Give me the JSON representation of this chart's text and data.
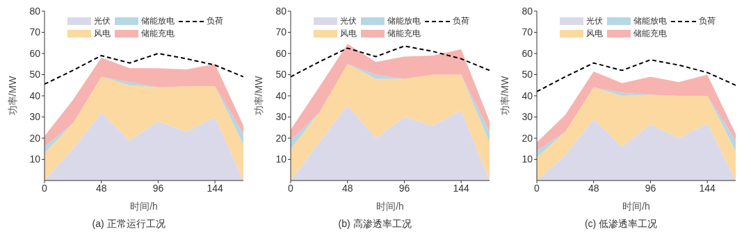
{
  "chart_data": [
    {
      "type": "area",
      "stacked": true,
      "title": "(a) 正常运行工况",
      "xlabel": "时间/h",
      "ylabel": "功率/MW",
      "x": [
        0,
        24,
        48,
        72,
        96,
        120,
        144,
        168
      ],
      "xlim": [
        0,
        168
      ],
      "xticks": [
        0,
        48,
        96,
        144
      ],
      "ylim": [
        0,
        80
      ],
      "yticks": [
        10,
        20,
        30,
        40,
        50,
        60,
        70,
        80
      ],
      "legend": "top",
      "series": [
        {
          "name": "光伏",
          "color": "#d9d9ea",
          "values": [
            0,
            15,
            32,
            19,
            28,
            23,
            30,
            0
          ]
        },
        {
          "name": "风电",
          "color": "#fbd9a0",
          "values": [
            13,
            12,
            17,
            26,
            16,
            21.5,
            14.5,
            17
          ]
        },
        {
          "name": "储能放电",
          "color": "#b6d7e4",
          "values": [
            3,
            0,
            0,
            1.5,
            0,
            0,
            0,
            5
          ]
        },
        {
          "name": "储能充电",
          "color": "#f7b3b0",
          "values": [
            5,
            11,
            9,
            6.5,
            9,
            8,
            10.5,
            4
          ]
        },
        {
          "name": "负荷",
          "type": "line",
          "color": "#000000",
          "line_style": "dashed",
          "values": [
            45.5,
            52,
            59,
            55.5,
            60,
            57.5,
            54.5,
            49
          ]
        }
      ]
    },
    {
      "type": "area",
      "stacked": true,
      "title": "(b) 高渗透率工况",
      "xlabel": "时间/h",
      "ylabel": "功率/MW",
      "x": [
        0,
        24,
        48,
        72,
        96,
        120,
        144,
        168
      ],
      "xlim": [
        0,
        168
      ],
      "xticks": [
        0,
        48,
        96,
        144
      ],
      "ylim": [
        0,
        80
      ],
      "yticks": [
        10,
        20,
        30,
        40,
        50,
        60,
        70,
        80
      ],
      "legend": "top",
      "series": [
        {
          "name": "光伏",
          "color": "#d9d9ea",
          "values": [
            0,
            18,
            35.5,
            20,
            30,
            26,
            33,
            0
          ]
        },
        {
          "name": "风电",
          "color": "#fbd9a0",
          "values": [
            15,
            14,
            19.5,
            28,
            18,
            24,
            17,
            18
          ]
        },
        {
          "name": "储能放电",
          "color": "#b6d7e4",
          "values": [
            4,
            0,
            0,
            2,
            0,
            0,
            0,
            5
          ]
        },
        {
          "name": "储能充电",
          "color": "#f7b3b0",
          "values": [
            5,
            12,
            9.5,
            6,
            10.5,
            9,
            12,
            5
          ]
        },
        {
          "name": "负荷",
          "type": "line",
          "color": "#000000",
          "line_style": "dashed",
          "values": [
            49,
            56,
            62.5,
            58.5,
            63.5,
            61,
            57.5,
            52
          ]
        }
      ]
    },
    {
      "type": "area",
      "stacked": true,
      "title": "(c) 低渗透率工况",
      "xlabel": "时间/h",
      "ylabel": "功率/MW",
      "x": [
        0,
        24,
        48,
        72,
        96,
        120,
        144,
        168
      ],
      "xlim": [
        0,
        168
      ],
      "xticks": [
        0,
        48,
        96,
        144
      ],
      "ylim": [
        0,
        80
      ],
      "yticks": [
        10,
        20,
        30,
        40,
        50,
        60,
        70,
        80
      ],
      "legend": "top",
      "series": [
        {
          "name": "光伏",
          "color": "#d9d9ea",
          "values": [
            0,
            12,
            29,
            16,
            26.5,
            20,
            27,
            0
          ]
        },
        {
          "name": "风电",
          "color": "#fbd9a0",
          "values": [
            11,
            11,
            15,
            24,
            14,
            20,
            13,
            14
          ]
        },
        {
          "name": "储能放电",
          "color": "#b6d7e4",
          "values": [
            3,
            0,
            0,
            1.5,
            0,
            0,
            0,
            5
          ]
        },
        {
          "name": "储能充电",
          "color": "#f7b3b0",
          "values": [
            4,
            8,
            7.5,
            4.5,
            8.5,
            6.5,
            10,
            3
          ]
        },
        {
          "name": "负荷",
          "type": "line",
          "color": "#000000",
          "line_style": "dashed",
          "values": [
            42,
            49,
            55.5,
            52,
            57,
            54.5,
            51,
            45
          ]
        }
      ]
    }
  ]
}
